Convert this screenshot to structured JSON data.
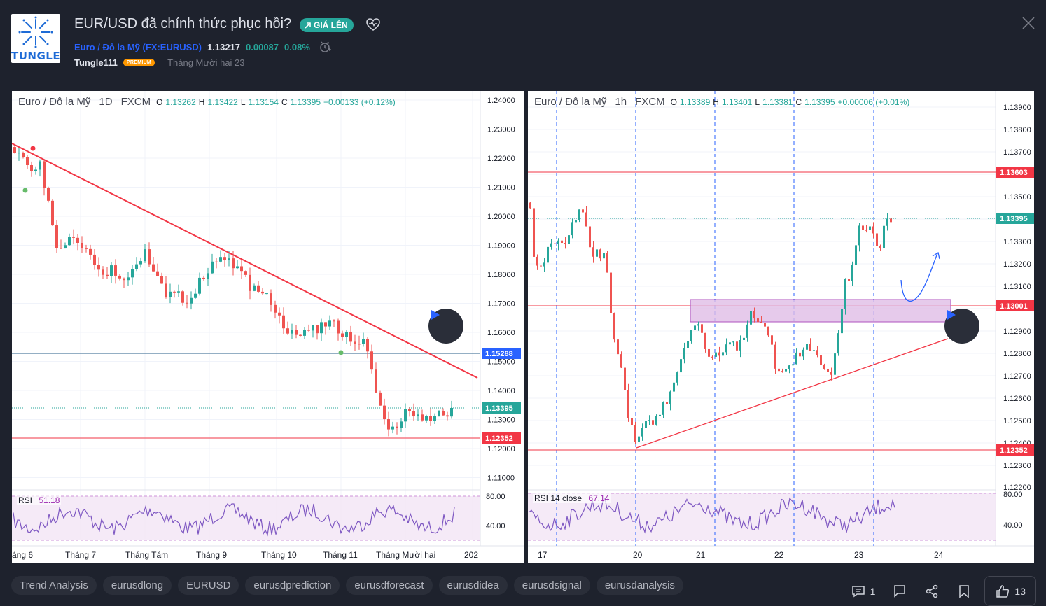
{
  "header": {
    "title": "EUR/USD đã chính thức phục hồi?",
    "badge": "GIÁ LÊN",
    "logo_text": "TUNGLE",
    "symbol_link": "Euro / Đô la Mỹ (FX:EURUSD)",
    "price": "1.13217",
    "change": "0.00087",
    "change_pct": "0.08%",
    "author": "Tungle111",
    "premium": "PREMIUM",
    "date": "Tháng Mười hai 23"
  },
  "left_chart": {
    "legend": {
      "name": "Euro / Đô la Mỹ",
      "interval": "1D",
      "source": "FXCM",
      "o_label": "O",
      "o": "1.13262",
      "h_label": "H",
      "h": "1.13422",
      "l_label": "L",
      "l": "1.13154",
      "c_label": "C",
      "c": "1.13395",
      "chg": "+0.00133 (+0.12%)"
    },
    "rsi": {
      "label": "RSI",
      "value": "51.18",
      "levels": [
        "80.00",
        "40.00"
      ]
    },
    "price_axis": [
      "1.24000",
      "1.23000",
      "1.22000",
      "1.21000",
      "1.20000",
      "1.19000",
      "1.18000",
      "1.17000",
      "1.16000",
      "1.15000",
      "1.14000",
      "1.13000",
      "1.12000",
      "1.11000"
    ],
    "price_tags": [
      {
        "text": "1.15288",
        "color": "#2962ff"
      },
      {
        "text": "1.13395",
        "color": "#26a69a"
      },
      {
        "text": "1.12352",
        "color": "#f23645"
      }
    ],
    "time_axis": [
      "áng 6",
      "Tháng 7",
      "Tháng Tám",
      "Tháng 9",
      "Tháng 10",
      "Tháng 11",
      "Tháng Mười hai",
      "202"
    ]
  },
  "right_chart": {
    "legend": {
      "name": "Euro / Đô la Mỹ",
      "interval": "1h",
      "source": "FXCM",
      "o_label": "O",
      "o": "1.13389",
      "h_label": "H",
      "h": "1.13401",
      "l_label": "L",
      "l": "1.13381",
      "c_label": "C",
      "c": "1.13395",
      "chg": "+0.00006 (+0.01%)"
    },
    "rsi": {
      "label": "RSI 14 close",
      "value": "67.14",
      "levels": [
        "80.00",
        "40.00"
      ]
    },
    "price_axis": [
      "1.13900",
      "1.13800",
      "1.13700",
      "1.13500",
      "1.13400",
      "1.13300",
      "1.13200",
      "1.13100",
      "1.12900",
      "1.12800",
      "1.12700",
      "1.12600",
      "1.12500",
      "1.12400",
      "1.12300",
      "1.12200"
    ],
    "price_tags": [
      {
        "text": "1.13603",
        "color": "#f23645"
      },
      {
        "text": "1.13395",
        "color": "#26a69a"
      },
      {
        "text": "1.13001",
        "color": "#f23645"
      },
      {
        "text": "1.12352",
        "color": "#f23645"
      }
    ],
    "time_axis": [
      "17",
      "20",
      "21",
      "22",
      "23",
      "24"
    ]
  },
  "tags": [
    "Trend Analysis",
    "eurusdlong",
    "EURUSD",
    "eurusdprediction",
    "eurusdforecast",
    "eurusdidea",
    "eurusdsignal",
    "eurusdanalysis"
  ],
  "actions": {
    "comments": "1",
    "likes": "13"
  },
  "colors": {
    "up": "#26a69a",
    "down": "#ef5350",
    "bg": "#1e222d",
    "accent": "#2962ff"
  }
}
